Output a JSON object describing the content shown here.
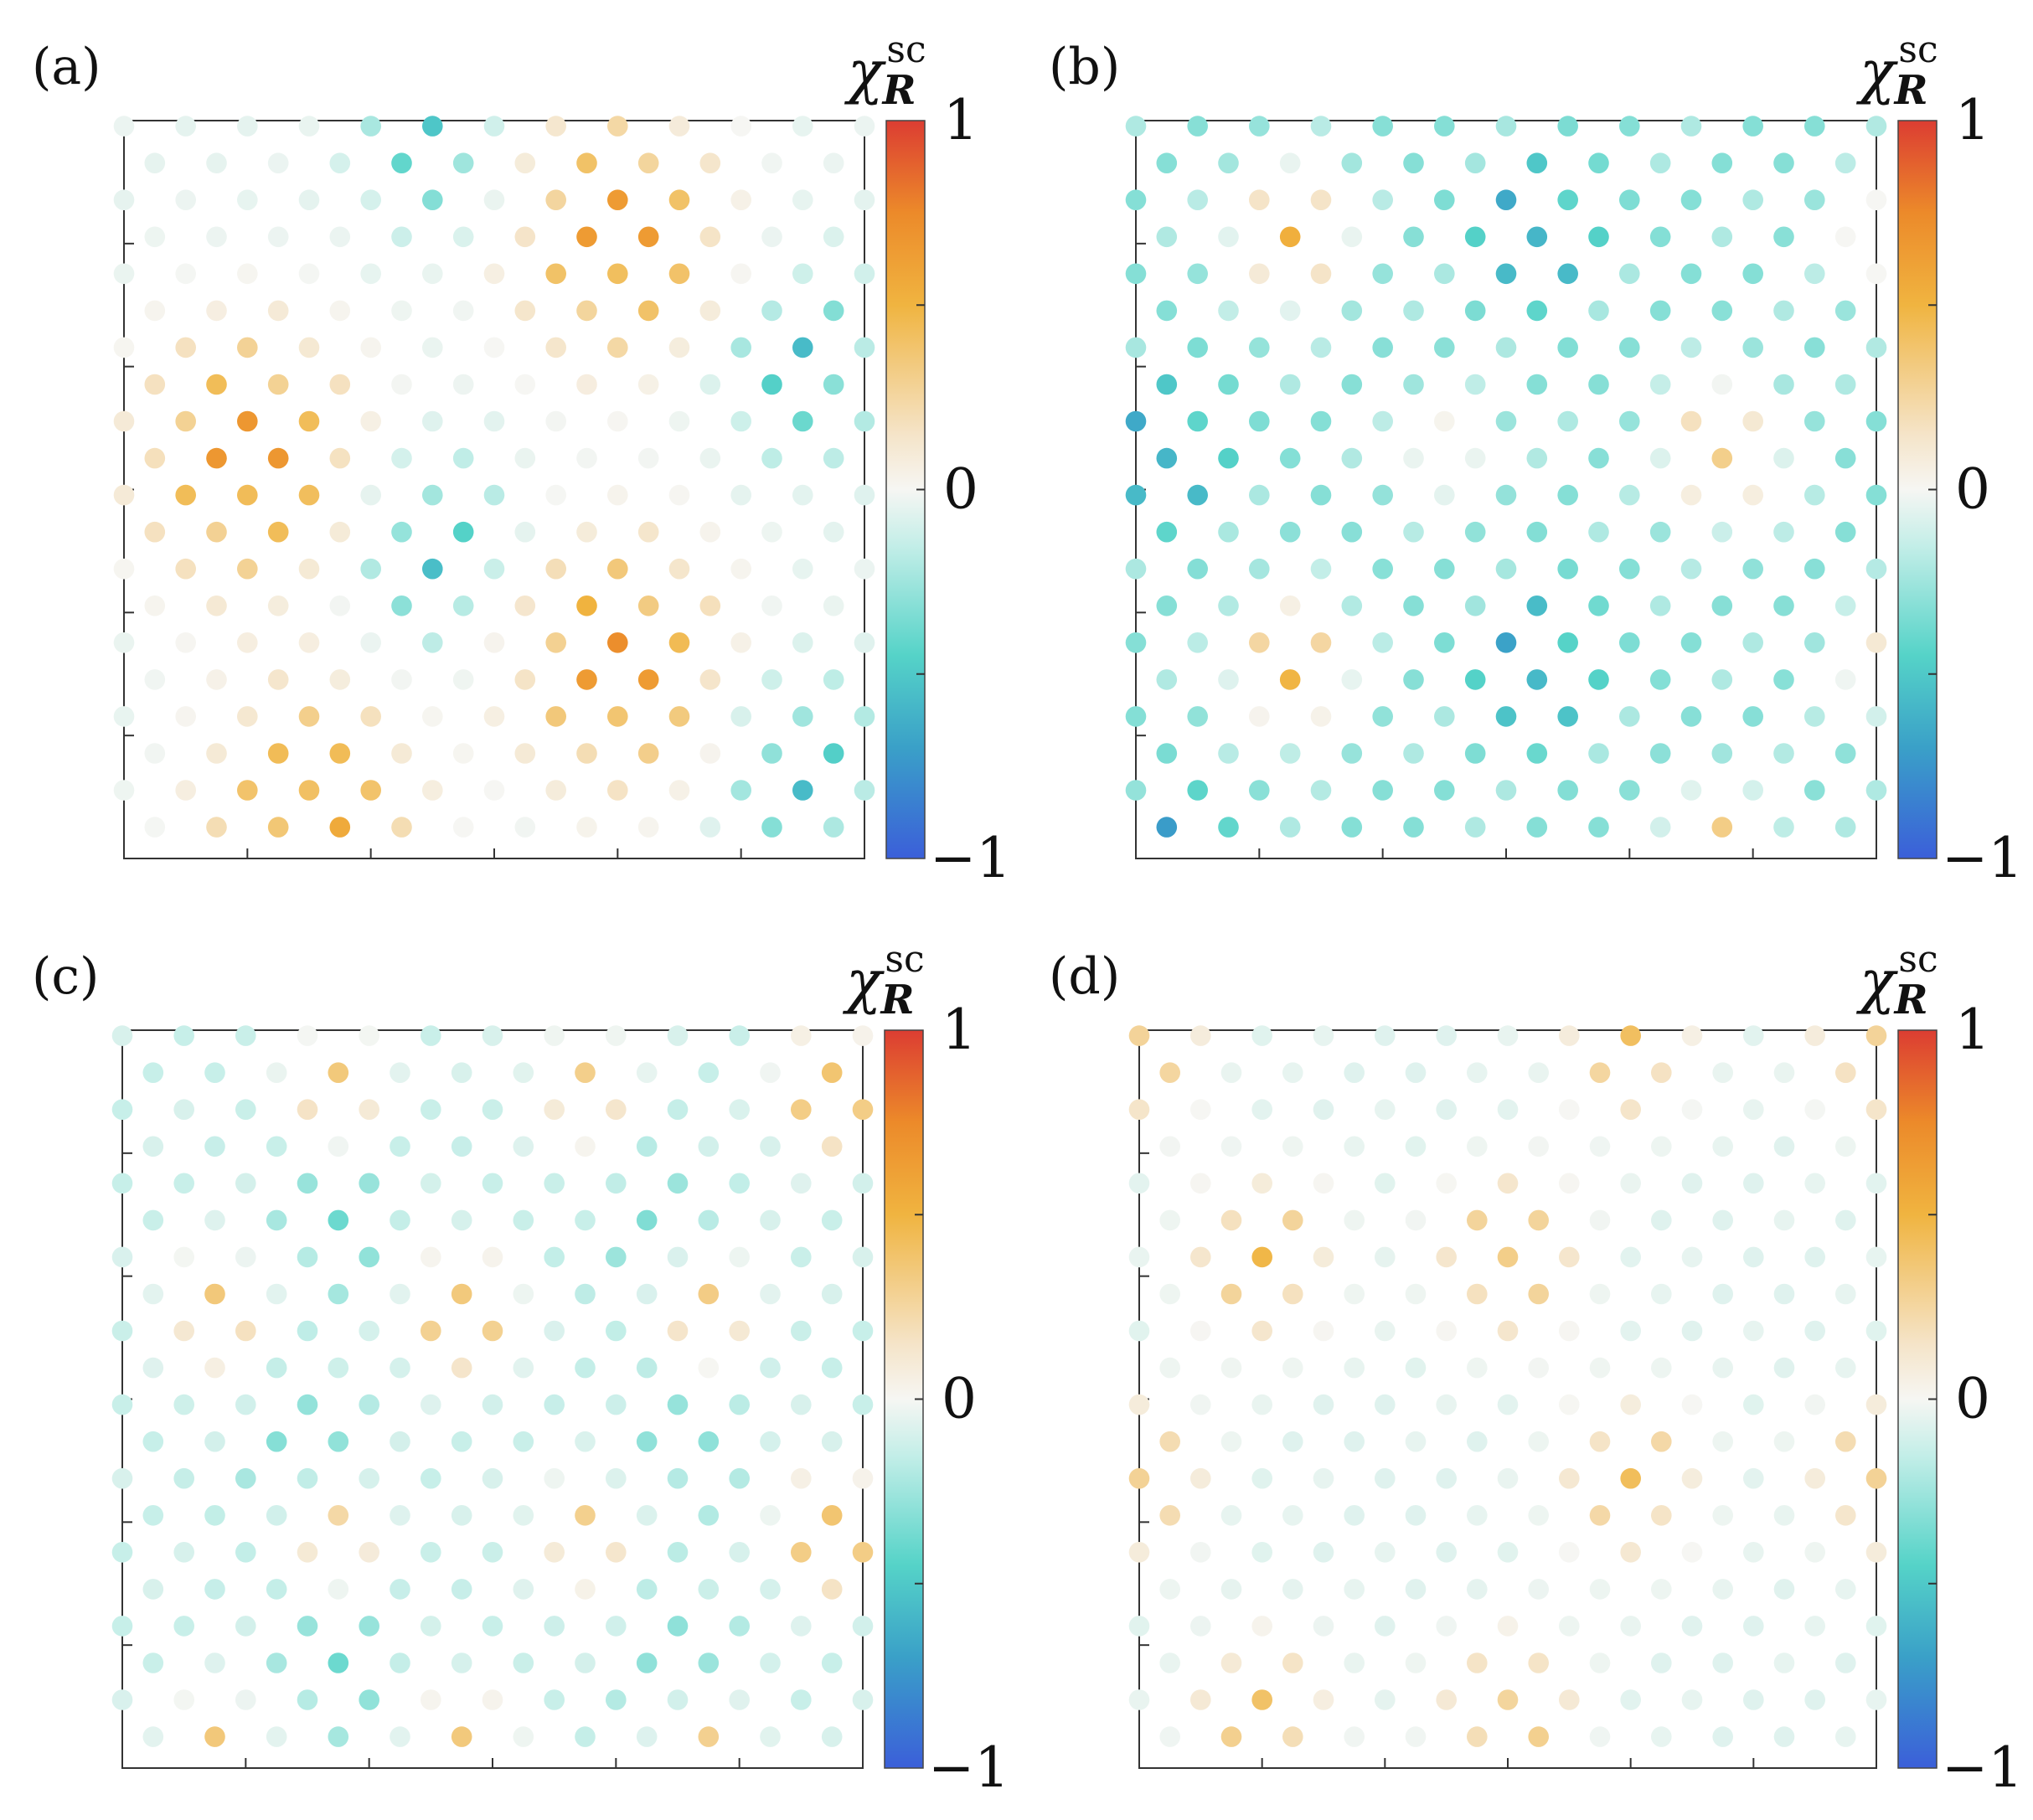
{
  "chart_data": {
    "type": "scatter",
    "description_style": "heatmap-lattice",
    "lattice": {
      "rows": 20,
      "cols": 13,
      "offset_odd_rows": true
    },
    "colorbar": {
      "title": "χ",
      "title_superscript": "sc",
      "title_subscript": "R",
      "range": [
        -1,
        1
      ],
      "tick_labels": [
        "1",
        "0",
        "−1"
      ],
      "stops": [
        {
          "value": -1.0,
          "color": "#3b5fd9"
        },
        {
          "value": -0.7,
          "color": "#3aa0c8"
        },
        {
          "value": -0.45,
          "color": "#55d3c8"
        },
        {
          "value": -0.15,
          "color": "#c4eee8"
        },
        {
          "value": 0.0,
          "color": "#f6f6f3"
        },
        {
          "value": 0.15,
          "color": "#f5e4c8"
        },
        {
          "value": 0.5,
          "color": "#f0b440"
        },
        {
          "value": 0.75,
          "color": "#ec8a2a"
        },
        {
          "value": 1.0,
          "color": "#dc3d32"
        }
      ]
    },
    "panels": [
      {
        "label": "(a)",
        "background_level": -0.05,
        "bumps": [
          {
            "x": 2.0,
            "y": 9.0,
            "amp": 0.8,
            "w": 1.9
          },
          {
            "x": 8.0,
            "y": 3.0,
            "amp": 0.78,
            "w": 1.8
          },
          {
            "x": 8.0,
            "y": 14.5,
            "amp": 0.8,
            "w": 1.8
          },
          {
            "x": 3.0,
            "y": 18.5,
            "amp": 0.7,
            "w": 1.8
          },
          {
            "x": 5.0,
            "y": 11.5,
            "amp": -0.55,
            "w": 1.3
          },
          {
            "x": 11.0,
            "y": 6.5,
            "amp": -0.55,
            "w": 1.3
          },
          {
            "x": 11.0,
            "y": 17.5,
            "amp": -0.55,
            "w": 1.3
          },
          {
            "x": 5.0,
            "y": 0.5,
            "amp": -0.5,
            "w": 1.2
          }
        ]
      },
      {
        "label": "(b)",
        "background_level": -0.32,
        "bumps": [
          {
            "x": 6.5,
            "y": 2.8,
            "amp": -0.6,
            "w": 1.0
          },
          {
            "x": 6.5,
            "y": 14.6,
            "amp": -0.6,
            "w": 1.0
          },
          {
            "x": 0.5,
            "y": 8.8,
            "amp": -0.6,
            "w": 1.0
          },
          {
            "x": 0.5,
            "y": 19.8,
            "amp": -0.5,
            "w": 1.0
          },
          {
            "x": 2.5,
            "y": 3.0,
            "amp": 0.85,
            "w": 1.1
          },
          {
            "x": 2.5,
            "y": 14.6,
            "amp": 0.85,
            "w": 1.1
          },
          {
            "x": 9.5,
            "y": 8.8,
            "amp": 0.8,
            "w": 1.1
          },
          {
            "x": 9.5,
            "y": 19.5,
            "amp": 0.7,
            "w": 1.0
          },
          {
            "x": 12.0,
            "y": 3.0,
            "amp": 0.5,
            "w": 0.9
          },
          {
            "x": 12.0,
            "y": 14.6,
            "amp": 0.5,
            "w": 0.9
          },
          {
            "x": 5.0,
            "y": 8.8,
            "amp": 0.45,
            "w": 0.9
          }
        ]
      },
      {
        "label": "(c)",
        "background_level": -0.14,
        "bumps": [
          {
            "x": 1.5,
            "y": 7.5,
            "amp": 0.55,
            "w": 0.9
          },
          {
            "x": 5.5,
            "y": 7.5,
            "amp": 0.75,
            "w": 0.9
          },
          {
            "x": 9.5,
            "y": 7.5,
            "amp": 0.55,
            "w": 0.9
          },
          {
            "x": 3.5,
            "y": 1.5,
            "amp": 0.55,
            "w": 0.9
          },
          {
            "x": 7.5,
            "y": 1.5,
            "amp": 0.5,
            "w": 0.9
          },
          {
            "x": 11.5,
            "y": 1.5,
            "amp": 0.8,
            "w": 0.9
          },
          {
            "x": 3.5,
            "y": 13.5,
            "amp": 0.55,
            "w": 0.9
          },
          {
            "x": 7.5,
            "y": 13.5,
            "amp": 0.5,
            "w": 0.9
          },
          {
            "x": 11.5,
            "y": 13.5,
            "amp": 0.8,
            "w": 0.9
          },
          {
            "x": 1.5,
            "y": 19.5,
            "amp": 0.55,
            "w": 0.9
          },
          {
            "x": 5.5,
            "y": 19.5,
            "amp": 0.75,
            "w": 0.9
          },
          {
            "x": 9.5,
            "y": 19.5,
            "amp": 0.55,
            "w": 0.9
          },
          {
            "x": 3.5,
            "y": 5.0,
            "amp": -0.25,
            "w": 1.2
          },
          {
            "x": 8.5,
            "y": 5.0,
            "amp": -0.2,
            "w": 1.2
          },
          {
            "x": 3.0,
            "y": 11.5,
            "amp": -0.25,
            "w": 1.2
          },
          {
            "x": 9.0,
            "y": 11.0,
            "amp": -0.2,
            "w": 1.2
          },
          {
            "x": 3.5,
            "y": 17.0,
            "amp": -0.25,
            "w": 1.2
          },
          {
            "x": 9.0,
            "y": 17.0,
            "amp": -0.2,
            "w": 1.2
          }
        ]
      },
      {
        "label": "(d)",
        "background_level": -0.07,
        "bumps": [
          {
            "x": 2.0,
            "y": 6.0,
            "amp": 0.55,
            "w": 1.2
          },
          {
            "x": 6.0,
            "y": 6.0,
            "amp": 0.55,
            "w": 1.2
          },
          {
            "x": 8.0,
            "y": 0.3,
            "amp": 0.5,
            "w": 1.1
          },
          {
            "x": 12.0,
            "y": 0.3,
            "amp": 0.5,
            "w": 1.1
          },
          {
            "x": 0.0,
            "y": 0.3,
            "amp": 0.5,
            "w": 1.1
          },
          {
            "x": 8.0,
            "y": 12.0,
            "amp": 0.5,
            "w": 1.2
          },
          {
            "x": 0.0,
            "y": 12.0,
            "amp": 0.5,
            "w": 1.1
          },
          {
            "x": 12.0,
            "y": 12.0,
            "amp": 0.5,
            "w": 1.1
          },
          {
            "x": 2.0,
            "y": 18.5,
            "amp": 0.5,
            "w": 1.2
          },
          {
            "x": 6.0,
            "y": 18.5,
            "amp": 0.5,
            "w": 1.2
          }
        ]
      }
    ]
  }
}
